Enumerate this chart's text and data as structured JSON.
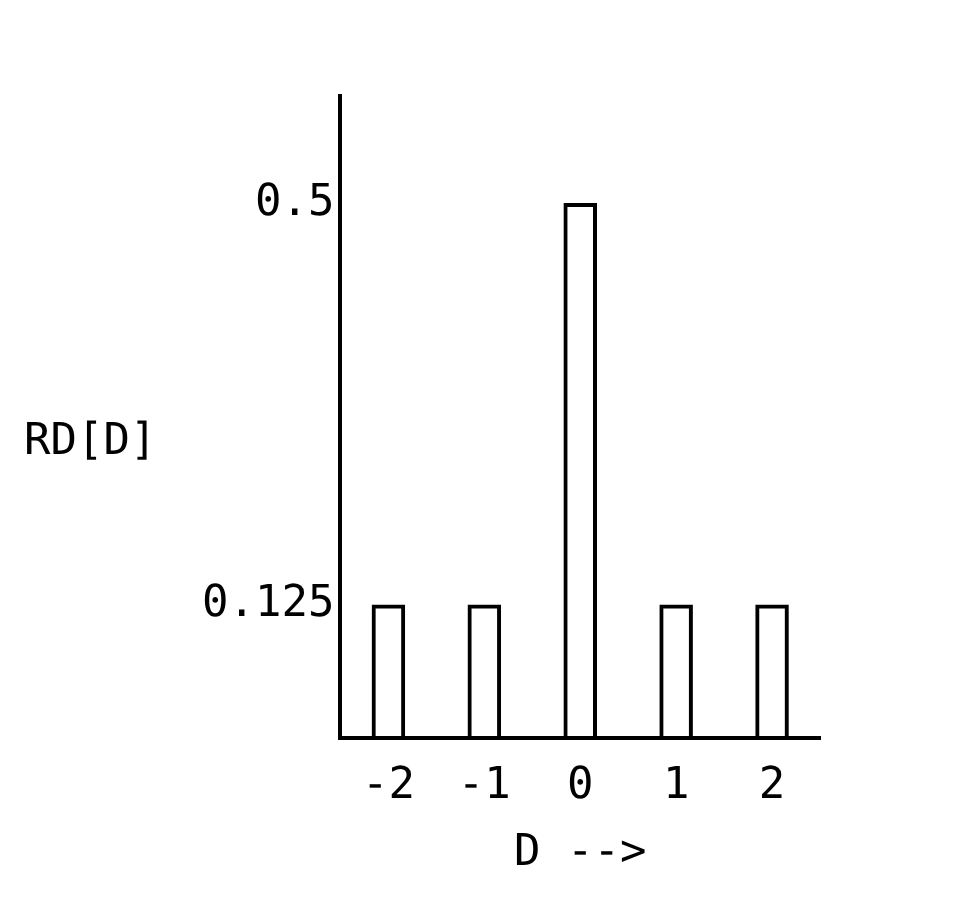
{
  "chart_data": {
    "type": "bar",
    "xlabel": "D -->",
    "ylabel": "RD[D]",
    "categories": [
      "-2",
      "-1",
      "0",
      "1",
      "2"
    ],
    "values": [
      0.125,
      0.125,
      0.5,
      0.125,
      0.125
    ],
    "ylim": [
      0,
      0.6
    ],
    "yticks": [
      0.125,
      0.5
    ],
    "color": "#000000",
    "grid": false,
    "legend": false
  }
}
